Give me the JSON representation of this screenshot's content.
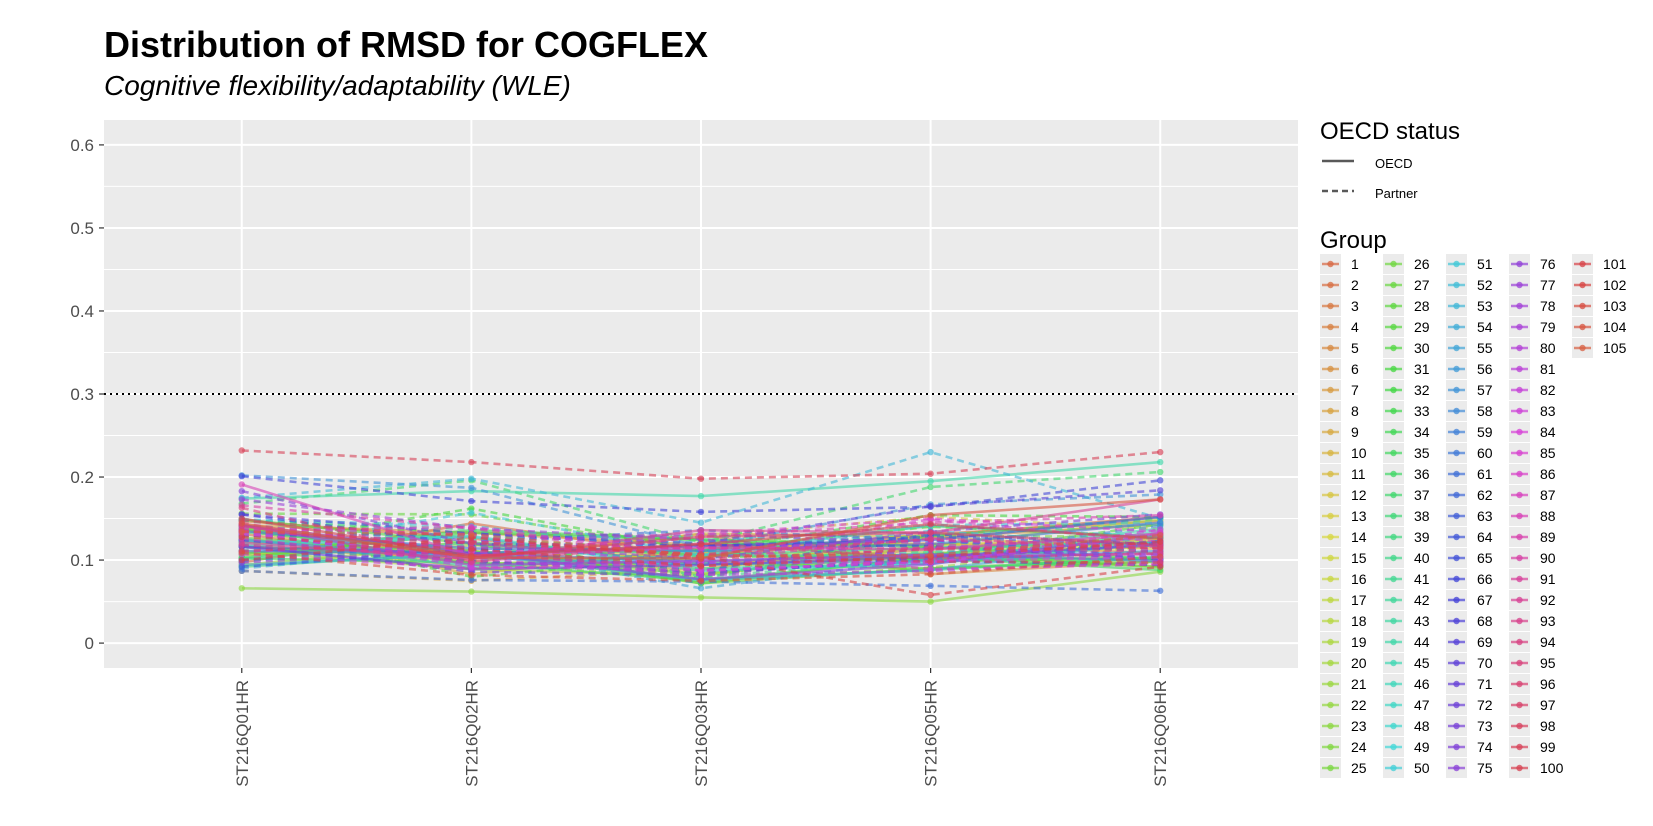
{
  "title": "Distribution of RMSD for COGFLEX",
  "subtitle": "Cognitive flexibility/adaptability (WLE)",
  "legend": {
    "oecd_title": "OECD status",
    "oecd_items": [
      {
        "label": "OECD",
        "linetype": "solid"
      },
      {
        "label": "Partner",
        "linetype": "dashed"
      }
    ],
    "group_title": "Group"
  },
  "chart_data": {
    "type": "line",
    "title": "Distribution of RMSD for COGFLEX",
    "subtitle": "Cognitive flexibility/adaptability (WLE)",
    "xlabel": "",
    "ylabel": "",
    "categories": [
      "ST216Q01HR",
      "ST216Q02HR",
      "ST216Q03HR",
      "ST216Q05HR",
      "ST216Q06HR"
    ],
    "ylim": [
      -0.03,
      0.63
    ],
    "yticks": [
      0,
      0.1,
      0.2,
      0.3,
      0.4,
      0.5,
      0.6
    ],
    "ytick_labels": [
      "0",
      "0.1",
      "0.2",
      "0.3",
      "0.4",
      "0.5",
      "0.6"
    ],
    "reference_line": {
      "y": 0.3,
      "style": "dotted"
    },
    "grid": true,
    "panel_background": "#ebebeb",
    "legend_position": "right",
    "series": [
      {
        "name": "1",
        "oecd": "Partner",
        "values": [
          0.124,
          0.099,
          0.083,
          0.104,
          0.093
        ]
      },
      {
        "name": "2",
        "oecd": "OECD",
        "values": [
          0.097,
          0.144,
          0.104,
          0.129,
          0.152
        ]
      },
      {
        "name": "3",
        "oecd": "OECD",
        "values": [
          0.132,
          0.09,
          0.108,
          0.131,
          0.147
        ]
      },
      {
        "name": "4",
        "oecd": "OECD",
        "values": [
          0.147,
          0.126,
          0.094,
          0.113,
          0.126
        ]
      },
      {
        "name": "5",
        "oecd": "OECD",
        "values": [
          0.116,
          0.102,
          0.131,
          0.083,
          0.099
        ]
      },
      {
        "name": "6",
        "oecd": "OECD",
        "values": [
          0.125,
          0.106,
          0.088,
          0.127,
          0.143
        ]
      },
      {
        "name": "7",
        "oecd": "OECD",
        "values": [
          0.142,
          0.133,
          0.118,
          0.12,
          0.108
        ]
      },
      {
        "name": "8",
        "oecd": "Partner",
        "values": [
          0.087,
          0.075,
          0.089,
          0.108,
          0.114
        ]
      },
      {
        "name": "9",
        "oecd": "OECD",
        "values": [
          0.137,
          0.083,
          0.114,
          0.119,
          0.121
        ]
      },
      {
        "name": "10",
        "oecd": "Partner",
        "values": [
          0.099,
          0.116,
          0.121,
          0.104,
          0.115
        ]
      },
      {
        "name": "11",
        "oecd": "OECD",
        "values": [
          0.118,
          0.098,
          0.132,
          0.128,
          0.113
        ]
      },
      {
        "name": "12",
        "oecd": "Partner",
        "values": [
          0.129,
          0.133,
          0.128,
          0.152,
          0.137
        ]
      },
      {
        "name": "13",
        "oecd": "OECD",
        "values": [
          0.106,
          0.121,
          0.099,
          0.101,
          0.117
        ]
      },
      {
        "name": "14",
        "oecd": "OECD",
        "values": [
          0.108,
          0.111,
          0.09,
          0.118,
          0.127
        ]
      },
      {
        "name": "15",
        "oecd": "Partner",
        "values": [
          0.125,
          0.125,
          0.112,
          0.1,
          0.096
        ]
      },
      {
        "name": "16",
        "oecd": "OECD",
        "values": [
          0.122,
          0.111,
          0.084,
          0.107,
          0.124
        ]
      },
      {
        "name": "17",
        "oecd": "Partner",
        "values": [
          0.133,
          0.121,
          0.085,
          0.105,
          0.132
        ]
      },
      {
        "name": "18",
        "oecd": "OECD",
        "values": [
          0.141,
          0.094,
          0.109,
          0.106,
          0.121
        ]
      },
      {
        "name": "19",
        "oecd": "OECD",
        "values": [
          0.111,
          0.089,
          0.081,
          0.117,
          0.149
        ]
      },
      {
        "name": "20",
        "oecd": "OECD",
        "values": [
          0.094,
          0.118,
          0.106,
          0.101,
          0.103
        ]
      },
      {
        "name": "21",
        "oecd": "Partner",
        "values": [
          0.116,
          0.099,
          0.075,
          0.091,
          0.118
        ]
      },
      {
        "name": "22",
        "oecd": "Partner",
        "values": [
          0.131,
          0.104,
          0.131,
          0.108,
          0.128
        ]
      },
      {
        "name": "23",
        "oecd": "OECD",
        "values": [
          0.066,
          0.062,
          0.055,
          0.05,
          0.086
        ]
      },
      {
        "name": "24",
        "oecd": "OECD",
        "values": [
          0.127,
          0.106,
          0.083,
          0.11,
          0.091
        ]
      },
      {
        "name": "25",
        "oecd": "Partner",
        "values": [
          0.102,
          0.099,
          0.118,
          0.129,
          0.128
        ]
      },
      {
        "name": "26",
        "oecd": "OECD",
        "values": [
          0.138,
          0.111,
          0.072,
          0.104,
          0.092
        ]
      },
      {
        "name": "27",
        "oecd": "Partner",
        "values": [
          0.156,
          0.155,
          0.111,
          0.14,
          0.128
        ]
      },
      {
        "name": "28",
        "oecd": "OECD",
        "values": [
          0.138,
          0.096,
          0.096,
          0.09,
          0.098
        ]
      },
      {
        "name": "29",
        "oecd": "OECD",
        "values": [
          0.149,
          0.12,
          0.072,
          0.09,
          0.102
        ]
      },
      {
        "name": "30",
        "oecd": "Partner",
        "values": [
          0.138,
          0.08,
          0.104,
          0.105,
          0.143
        ]
      },
      {
        "name": "31",
        "oecd": "Partner",
        "values": [
          0.117,
          0.162,
          0.111,
          0.154,
          0.152
        ]
      },
      {
        "name": "32",
        "oecd": "OECD",
        "values": [
          0.103,
          0.133,
          0.124,
          0.099,
          0.102
        ]
      },
      {
        "name": "33",
        "oecd": "Partner",
        "values": [
          0.148,
          0.132,
          0.089,
          0.098,
          0.123
        ]
      },
      {
        "name": "34",
        "oecd": "OECD",
        "values": [
          0.107,
          0.136,
          0.125,
          0.116,
          0.101
        ]
      },
      {
        "name": "35",
        "oecd": "OECD",
        "values": [
          0.102,
          0.097,
          0.075,
          0.103,
          0.088
        ]
      },
      {
        "name": "36",
        "oecd": "Partner",
        "values": [
          0.141,
          0.128,
          0.078,
          0.129,
          0.15
        ]
      },
      {
        "name": "37",
        "oecd": "Partner",
        "values": [
          0.168,
          0.196,
          0.121,
          0.188,
          0.206
        ]
      },
      {
        "name": "38",
        "oecd": "OECD",
        "values": [
          0.134,
          0.109,
          0.111,
          0.141,
          0.127
        ]
      },
      {
        "name": "39",
        "oecd": "OECD",
        "values": [
          0.092,
          0.109,
          0.077,
          0.088,
          0.104
        ]
      },
      {
        "name": "40",
        "oecd": "OECD",
        "values": [
          0.102,
          0.121,
          0.106,
          0.115,
          0.121
        ]
      },
      {
        "name": "41",
        "oecd": "Partner",
        "values": [
          0.148,
          0.137,
          0.08,
          0.1,
          0.12
        ]
      },
      {
        "name": "42",
        "oecd": "Partner",
        "values": [
          0.138,
          0.126,
          0.111,
          0.098,
          0.111
        ]
      },
      {
        "name": "43",
        "oecd": "Partner",
        "values": [
          0.148,
          0.117,
          0.108,
          0.13,
          0.143
        ]
      },
      {
        "name": "44",
        "oecd": "OECD",
        "values": [
          0.174,
          0.183,
          0.177,
          0.195,
          0.218
        ]
      },
      {
        "name": "45",
        "oecd": "OECD",
        "values": [
          0.126,
          0.092,
          0.106,
          0.105,
          0.138
        ]
      },
      {
        "name": "46",
        "oecd": "OECD",
        "values": [
          0.121,
          0.129,
          0.09,
          0.096,
          0.135
        ]
      },
      {
        "name": "47",
        "oecd": "Partner",
        "values": [
          0.131,
          0.094,
          0.096,
          0.11,
          0.121
        ]
      },
      {
        "name": "48",
        "oecd": "Partner",
        "values": [
          0.121,
          0.126,
          0.129,
          0.122,
          0.117
        ]
      },
      {
        "name": "49",
        "oecd": "Partner",
        "values": [
          0.123,
          0.128,
          0.121,
          0.142,
          0.128
        ]
      },
      {
        "name": "50",
        "oecd": "OECD",
        "values": [
          0.117,
          0.128,
          0.087,
          0.096,
          0.121
        ]
      },
      {
        "name": "51",
        "oecd": "Partner",
        "values": [
          0.111,
          0.157,
          0.106,
          0.142,
          0.145
        ]
      },
      {
        "name": "52",
        "oecd": "Partner",
        "values": [
          0.149,
          0.141,
          0.11,
          0.135,
          0.117
        ]
      },
      {
        "name": "53",
        "oecd": "Partner",
        "values": [
          0.175,
          0.198,
          0.145,
          0.23,
          0.15
        ]
      },
      {
        "name": "54",
        "oecd": "OECD",
        "values": [
          0.094,
          0.107,
          0.076,
          0.088,
          0.123
        ]
      },
      {
        "name": "55",
        "oecd": "Partner",
        "values": [
          0.09,
          0.115,
          0.066,
          0.102,
          0.128
        ]
      },
      {
        "name": "56",
        "oecd": "OECD",
        "values": [
          0.124,
          0.103,
          0.095,
          0.099,
          0.111
        ]
      },
      {
        "name": "57",
        "oecd": "Partner",
        "values": [
          0.202,
          0.187,
          0.116,
          0.167,
          0.179
        ]
      },
      {
        "name": "58",
        "oecd": "Partner",
        "values": [
          0.099,
          0.117,
          0.099,
          0.106,
          0.141
        ]
      },
      {
        "name": "59",
        "oecd": "OECD",
        "values": [
          0.111,
          0.108,
          0.098,
          0.107,
          0.099
        ]
      },
      {
        "name": "60",
        "oecd": "OECD",
        "values": [
          0.135,
          0.114,
          0.111,
          0.119,
          0.145
        ]
      },
      {
        "name": "61",
        "oecd": "Partner",
        "values": [
          0.087,
          0.076,
          0.074,
          0.069,
          0.063
        ]
      },
      {
        "name": "62",
        "oecd": "Partner",
        "values": [
          0.1,
          0.122,
          0.136,
          0.124,
          0.102
        ]
      },
      {
        "name": "63",
        "oecd": "OECD",
        "values": [
          0.116,
          0.108,
          0.117,
          0.124,
          0.152
        ]
      },
      {
        "name": "64",
        "oecd": "Partner",
        "values": [
          0.092,
          0.113,
          0.116,
          0.128,
          0.118
        ]
      },
      {
        "name": "65",
        "oecd": "Partner",
        "values": [
          0.136,
          0.114,
          0.087,
          0.131,
          0.119
        ]
      },
      {
        "name": "66",
        "oecd": "Partner",
        "values": [
          0.201,
          0.171,
          0.158,
          0.164,
          0.196
        ]
      },
      {
        "name": "67",
        "oecd": "Partner",
        "values": [
          0.155,
          0.119,
          0.118,
          0.117,
          0.101
        ]
      },
      {
        "name": "68",
        "oecd": "Partner",
        "values": [
          0.124,
          0.099,
          0.085,
          0.099,
          0.094
        ]
      },
      {
        "name": "69",
        "oecd": "Partner",
        "values": [
          0.155,
          0.132,
          0.12,
          0.165,
          0.184
        ]
      },
      {
        "name": "70",
        "oecd": "Partner",
        "values": [
          0.129,
          0.132,
          0.116,
          0.124,
          0.11
        ]
      },
      {
        "name": "71",
        "oecd": "OECD",
        "values": [
          0.116,
          0.089,
          0.094,
          0.104,
          0.118
        ]
      },
      {
        "name": "72",
        "oecd": "Partner",
        "values": [
          0.118,
          0.086,
          0.082,
          0.104,
          0.123
        ]
      },
      {
        "name": "73",
        "oecd": "Partner",
        "values": [
          0.134,
          0.096,
          0.097,
          0.101,
          0.121
        ]
      },
      {
        "name": "74",
        "oecd": "Partner",
        "values": [
          0.183,
          0.12,
          0.101,
          0.134,
          0.155
        ]
      },
      {
        "name": "75",
        "oecd": "Partner",
        "values": [
          0.097,
          0.112,
          0.083,
          0.115,
          0.107
        ]
      },
      {
        "name": "76",
        "oecd": "OECD",
        "values": [
          0.142,
          0.109,
          0.077,
          0.095,
          0.132
        ]
      },
      {
        "name": "77",
        "oecd": "Partner",
        "values": [
          0.173,
          0.138,
          0.125,
          0.104,
          0.105
        ]
      },
      {
        "name": "78",
        "oecd": "Partner",
        "values": [
          0.134,
          0.122,
          0.132,
          0.12,
          0.099
        ]
      },
      {
        "name": "79",
        "oecd": "OECD",
        "values": [
          0.142,
          0.094,
          0.099,
          0.106,
          0.107
        ]
      },
      {
        "name": "80",
        "oecd": "Partner",
        "values": [
          0.131,
          0.102,
          0.082,
          0.087,
          0.098
        ]
      },
      {
        "name": "81",
        "oecd": "Partner",
        "values": [
          0.11,
          0.122,
          0.113,
          0.124,
          0.113
        ]
      },
      {
        "name": "82",
        "oecd": "Partner",
        "values": [
          0.135,
          0.092,
          0.088,
          0.097,
          0.137
        ]
      },
      {
        "name": "83",
        "oecd": "Partner",
        "values": [
          0.107,
          0.09,
          0.097,
          0.097,
          0.13
        ]
      },
      {
        "name": "84",
        "oecd": "Partner",
        "values": [
          0.139,
          0.131,
          0.087,
          0.099,
          0.103
        ]
      },
      {
        "name": "85",
        "oecd": "Partner",
        "values": [
          0.132,
          0.105,
          0.131,
          0.15,
          0.134
        ]
      },
      {
        "name": "86",
        "oecd": "Partner",
        "values": [
          0.135,
          0.14,
          0.104,
          0.149,
          0.122
        ]
      },
      {
        "name": "87",
        "oecd": "Partner",
        "values": [
          0.144,
          0.11,
          0.116,
          0.089,
          0.095
        ]
      },
      {
        "name": "88",
        "oecd": "OECD",
        "values": [
          0.191,
          0.105,
          0.115,
          0.113,
          0.132
        ]
      },
      {
        "name": "89",
        "oecd": "Partner",
        "values": [
          0.126,
          0.097,
          0.128,
          0.145,
          0.154
        ]
      },
      {
        "name": "90",
        "oecd": "Partner",
        "values": [
          0.166,
          0.138,
          0.101,
          0.126,
          0.116
        ]
      },
      {
        "name": "91",
        "oecd": "Partner",
        "values": [
          0.137,
          0.115,
          0.115,
          0.114,
          0.119
        ]
      },
      {
        "name": "92",
        "oecd": "OECD",
        "values": [
          0.121,
          0.101,
          0.136,
          0.133,
          0.173
        ]
      },
      {
        "name": "93",
        "oecd": "Partner",
        "values": [
          0.118,
          0.106,
          0.092,
          0.116,
          0.11
        ]
      },
      {
        "name": "94",
        "oecd": "Partner",
        "values": [
          0.163,
          0.098,
          0.12,
          0.102,
          0.108
        ]
      },
      {
        "name": "95",
        "oecd": "Partner",
        "values": [
          0.135,
          0.12,
          0.107,
          0.125,
          0.114
        ]
      },
      {
        "name": "96",
        "oecd": "OECD",
        "values": [
          0.141,
          0.103,
          0.128,
          0.133,
          0.118
        ]
      },
      {
        "name": "97",
        "oecd": "Partner",
        "values": [
          0.147,
          0.128,
          0.101,
          0.113,
          0.115
        ]
      },
      {
        "name": "98",
        "oecd": "Partner",
        "values": [
          0.111,
          0.122,
          0.107,
          0.098,
          0.097
        ]
      },
      {
        "name": "99",
        "oecd": "Partner",
        "values": [
          0.232,
          0.218,
          0.198,
          0.204,
          0.23
        ]
      },
      {
        "name": "100",
        "oecd": "OECD",
        "values": [
          0.15,
          0.105,
          0.119,
          0.143,
          0.126
        ]
      },
      {
        "name": "101",
        "oecd": "Partner",
        "values": [
          0.1,
          0.127,
          0.104,
          0.058,
          0.092
        ]
      },
      {
        "name": "102",
        "oecd": "Partner",
        "values": [
          0.128,
          0.113,
          0.093,
          0.104,
          0.122
        ]
      },
      {
        "name": "103",
        "oecd": "Partner",
        "values": [
          0.109,
          0.082,
          0.075,
          0.083,
          0.104
        ]
      },
      {
        "name": "104",
        "oecd": "OECD",
        "values": [
          0.144,
          0.103,
          0.102,
          0.154,
          0.173
        ]
      },
      {
        "name": "105",
        "oecd": "Partner",
        "values": [
          0.134,
          0.131,
          0.105,
          0.106,
          0.13
        ]
      }
    ]
  }
}
